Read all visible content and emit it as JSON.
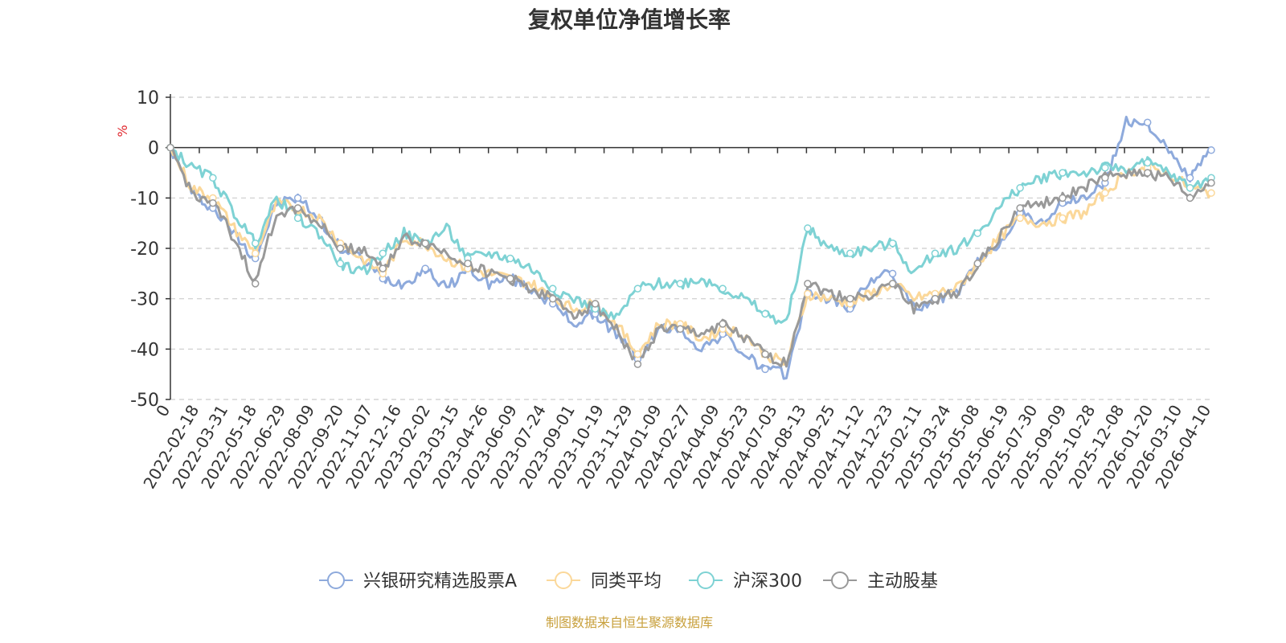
{
  "chart_data": {
    "type": "line",
    "title": "复权单位净值增长率",
    "ylabel": "%",
    "ylim": [
      -50,
      10
    ],
    "yticks": [
      10,
      0,
      -10,
      -20,
      -30,
      -40,
      -50
    ],
    "grid": true,
    "legend_position": "bottom",
    "source": "制图数据来自恒生聚源数据库",
    "xlabels": [
      "0",
      "2022-02-18",
      "2022-03-31",
      "2022-05-18",
      "2022-06-29",
      "2022-08-09",
      "2022-09-20",
      "2022-11-07",
      "2022-12-16",
      "2023-02-02",
      "2023-03-15",
      "2023-04-26",
      "2023-06-09",
      "2023-07-24",
      "2023-09-01",
      "2023-10-19",
      "2023-11-29",
      "2024-01-09",
      "2024-02-27",
      "2024-04-09",
      "2024-05-23",
      "2024-07-03",
      "2024-08-13",
      "2024-09-25",
      "2024-11-12",
      "2024-12-23",
      "2025-02-11",
      "2025-03-24",
      "2025-05-08",
      "2025-06-19",
      "2025-07-30",
      "2025-09-09",
      "2025-10-28",
      "2025-12-08",
      "2026-01-20",
      "2026-03-10",
      "2026-04-10"
    ],
    "series": [
      {
        "name": "兴银研究精选股票A",
        "color": "#8eaadc",
        "values": [
          0,
          -9,
          -12,
          -17,
          -22,
          -11,
          -10,
          -14,
          -20,
          -22,
          -26,
          -27,
          -24,
          -28,
          -24,
          -27,
          -26,
          -28,
          -31,
          -35,
          -33,
          -37,
          -42,
          -36,
          -36,
          -40,
          -37,
          -41,
          -44,
          -45,
          -29,
          -30,
          -32,
          -26,
          -25,
          -32,
          -30,
          -29,
          -23,
          -19,
          -13,
          -15,
          -11,
          -10,
          -7,
          5,
          5,
          -1,
          -6,
          -0.5
        ]
      },
      {
        "name": "同类平均",
        "color": "#fbd89a",
        "values": [
          0,
          -8,
          -10,
          -16,
          -21,
          -11,
          -12,
          -14,
          -19,
          -22,
          -25,
          -18,
          -19,
          -22,
          -24,
          -25,
          -26,
          -27,
          -30,
          -32,
          -31,
          -35,
          -41,
          -35,
          -35,
          -38,
          -36,
          -37,
          -41,
          -43,
          -29,
          -30,
          -31,
          -29,
          -27,
          -30,
          -29,
          -28,
          -23,
          -18,
          -14,
          -15,
          -14,
          -13,
          -9,
          -5,
          -4,
          -5,
          -8,
          -9
        ]
      },
      {
        "name": "沪深300",
        "color": "#7ed2d4",
        "values": [
          0,
          -4,
          -6,
          -13,
          -19,
          -10,
          -14,
          -17,
          -23,
          -25,
          -21,
          -17,
          -19,
          -16,
          -22,
          -21,
          -22,
          -24,
          -28,
          -30,
          -32,
          -34,
          -28,
          -27,
          -27,
          -26,
          -28,
          -30,
          -33,
          -35,
          -16,
          -20,
          -21,
          -20,
          -19,
          -25,
          -21,
          -20,
          -17,
          -12,
          -8,
          -6,
          -5,
          -5,
          -4,
          -4,
          -3,
          -5,
          -8,
          -6
        ]
      },
      {
        "name": "主动股基",
        "color": "#999999",
        "values": [
          0,
          -9,
          -11,
          -18,
          -27,
          -13,
          -12,
          -15,
          -20,
          -20,
          -24,
          -18,
          -19,
          -21,
          -23,
          -25,
          -26,
          -28,
          -30,
          -33,
          -31,
          -36,
          -43,
          -36,
          -36,
          -37,
          -35,
          -38,
          -41,
          -43,
          -27,
          -29,
          -30,
          -29,
          -27,
          -32,
          -30,
          -29,
          -23,
          -18,
          -12,
          -11,
          -10,
          -8,
          -6,
          -5,
          -5,
          -6,
          -10,
          -7
        ]
      }
    ]
  }
}
